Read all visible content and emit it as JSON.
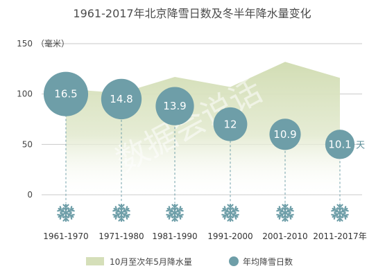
{
  "chart_data": {
    "type": "area",
    "title": "1961-2017年北京降雪日数及冬半年降水量变化",
    "ylabel": "（毫米）",
    "y_axis_value": "150",
    "ylim": [
      0,
      150
    ],
    "yticks": [
      0,
      50,
      100,
      150
    ],
    "yticks_labels": [
      "0",
      "50",
      "100"
    ],
    "grid": true,
    "categories": [
      "1961-1970",
      "1971-1980",
      "1981-1990",
      "1991-2000",
      "2001-2010",
      "2011-2017年"
    ],
    "series": [
      {
        "name": "10月至次年5月降水量",
        "kind": "area",
        "color": "#d5dfb9",
        "values": [
          105,
          101,
          117,
          107,
          132,
          116
        ]
      },
      {
        "name": "年均降雪日数",
        "kind": "bubble",
        "color": "#6e9ea8",
        "values": [
          16.5,
          14.8,
          13.9,
          12,
          10.9,
          10.1
        ],
        "labels": [
          "16.5",
          "14.8",
          "13.9",
          "12",
          "10.9",
          "10.1"
        ],
        "bubble_positions": [
          100,
          95,
          88,
          70,
          60,
          50
        ]
      }
    ],
    "unit_annotation": "天",
    "icon": "snowflake-icon",
    "legend_position": "bottom",
    "watermark": "数据会说话"
  }
}
